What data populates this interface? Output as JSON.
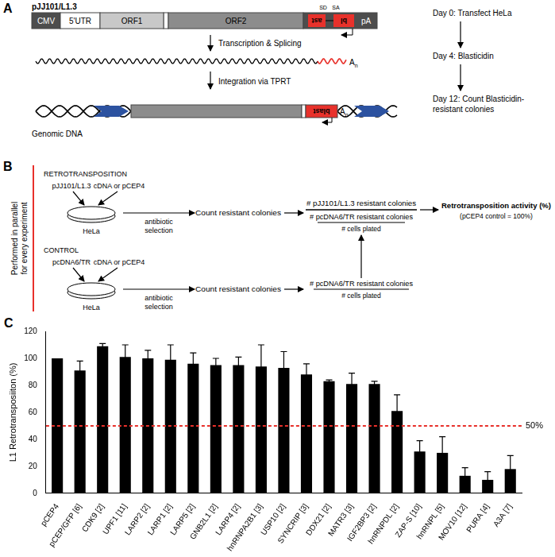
{
  "panel_a": {
    "label": "A",
    "construct": "pJJ101/L1.3",
    "segments": [
      "CMV",
      "5'UTR",
      "ORF1",
      "ORF2"
    ],
    "splice_sites": [
      "SD",
      "SA"
    ],
    "marker_gene": "blast",
    "marker_parts": [
      "bl",
      "ast"
    ],
    "polya": "pA",
    "steps": [
      "Transcription & Splicing",
      "Integration via TPRT"
    ],
    "poly_a_tail": "A",
    "poly_a_sub": "n",
    "genomic_label": "Genomic DNA",
    "timeline": [
      [
        "Day 0: Transfect HeLa"
      ],
      [
        "Day 4: Blasticidin"
      ],
      [
        "Day 12: Count Blasticidin-",
        "resistant colonies"
      ]
    ]
  },
  "panel_b": {
    "label": "B",
    "side_note": [
      "Performed in parallel",
      "for every experiment"
    ],
    "rows": [
      {
        "title": "RETROTRANSPOSITION",
        "plasmid": "pJJ101/L1.3",
        "cotransfected": "cDNA or pCEP4",
        "cells": "HeLa",
        "selection": [
          "antibiotic",
          "selection"
        ],
        "count": "Count resistant colonies"
      },
      {
        "title": "CONTROL",
        "plasmid": "pcDNA6/TR",
        "cotransfected": "cDNA or pCEP4",
        "cells": "HeLa",
        "selection": [
          "antibiotic",
          "selection"
        ],
        "count": "Count resistant colonies"
      }
    ],
    "fraction": {
      "numerator": "# pJJ101/L1.3 resistant colonies",
      "denominator": [
        "# pcDNA6/TR resistant colonies",
        "# cells plated"
      ]
    },
    "control_fraction": {
      "numerator": "# pcDNA6/TR resistant colonies",
      "denominator": "# cells plated"
    },
    "result": "Retrotransposition activity (%)",
    "result_note": "(pCEP4 control = 100%)"
  },
  "chart_data": {
    "type": "bar",
    "panel_label": "C",
    "y_label": "L1 Retrotransposiiton (%)",
    "categories": [
      "pCEP4",
      "pCEP/GFP [6]",
      "CDK9 [2]",
      "UPF1 [11]",
      "LARP2 [2]",
      "LARP1 [2]",
      "LARP5 [2]",
      "GNB2L1 [2]",
      "LARP4 [2]",
      "hnRNPA2B1 [3]",
      "USP10 [2]",
      "SYNCRIP [3]",
      "DDX21 [2]",
      "MATR3 [3]",
      "IGF2BP3 [2]",
      "hnRNPDL [2]",
      "ZAP-S [10]",
      "hnRNPL [5]",
      "MOV10 [12]",
      "PURA [4]",
      "A3A [7]"
    ],
    "values": [
      100,
      91,
      109,
      101,
      100,
      99,
      96,
      95,
      95,
      94,
      93,
      88,
      83,
      81,
      81,
      61,
      31,
      30,
      13,
      10,
      18
    ],
    "errors": [
      null,
      7,
      2,
      9,
      6,
      11,
      8,
      5,
      6,
      16,
      12,
      8,
      1,
      8,
      2,
      12,
      8,
      12,
      6,
      6,
      10
    ],
    "color": "#000000",
    "ylim": [
      0,
      120
    ],
    "yticks": [
      0,
      20,
      40,
      60,
      80,
      100,
      120
    ],
    "grid": false,
    "reference_line": {
      "value": 50,
      "label": "50%",
      "color": "#e8312b",
      "line_style": "dashed"
    }
  }
}
